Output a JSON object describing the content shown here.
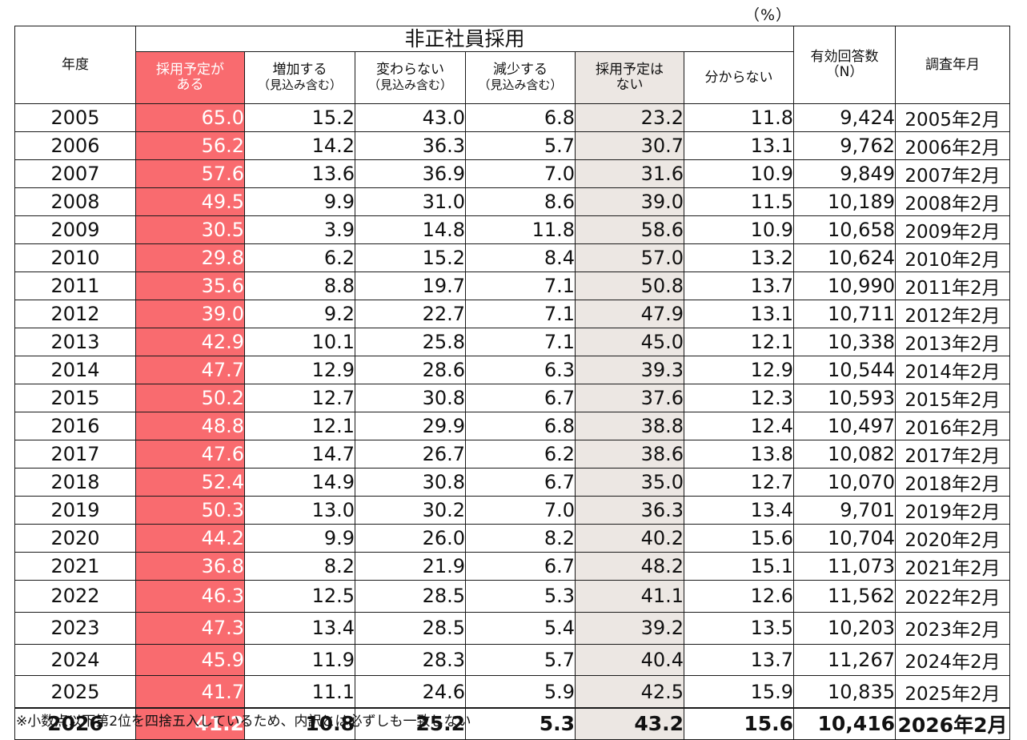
{
  "unit": "（%）",
  "header": {
    "year": "年度",
    "group": "非正社員採用",
    "plan_yes": [
      "採用予定が",
      "ある"
    ],
    "increase": [
      "増加する",
      "（見込み含む）"
    ],
    "same": [
      "変わらない",
      "（見込み含む）"
    ],
    "decrease": [
      "減少する",
      "（見込み含む）"
    ],
    "plan_no": [
      "採用予定は",
      "ない"
    ],
    "unknown": "分からない",
    "n": [
      "有効回答数",
      "（N）"
    ],
    "date": "調査年月"
  },
  "rows": [
    [
      "2005",
      "65.0",
      "15.2",
      "43.0",
      "6.8",
      "23.2",
      "11.8",
      "9,424",
      "2005年2月"
    ],
    [
      "2006",
      "56.2",
      "14.2",
      "36.3",
      "5.7",
      "30.7",
      "13.1",
      "9,762",
      "2006年2月"
    ],
    [
      "2007",
      "57.6",
      "13.6",
      "36.9",
      "7.0",
      "31.6",
      "10.9",
      "9,849",
      "2007年2月"
    ],
    [
      "2008",
      "49.5",
      "9.9",
      "31.0",
      "8.6",
      "39.0",
      "11.5",
      "10,189",
      "2008年2月"
    ],
    [
      "2009",
      "30.5",
      "3.9",
      "14.8",
      "11.8",
      "58.6",
      "10.9",
      "10,658",
      "2009年2月"
    ],
    [
      "2010",
      "29.8",
      "6.2",
      "15.2",
      "8.4",
      "57.0",
      "13.2",
      "10,624",
      "2010年2月"
    ],
    [
      "2011",
      "35.6",
      "8.8",
      "19.7",
      "7.1",
      "50.8",
      "13.7",
      "10,990",
      "2011年2月"
    ],
    [
      "2012",
      "39.0",
      "9.2",
      "22.7",
      "7.1",
      "47.9",
      "13.1",
      "10,711",
      "2012年2月"
    ],
    [
      "2013",
      "42.9",
      "10.1",
      "25.8",
      "7.1",
      "45.0",
      "12.1",
      "10,338",
      "2013年2月"
    ],
    [
      "2014",
      "47.7",
      "12.9",
      "28.6",
      "6.3",
      "39.3",
      "12.9",
      "10,544",
      "2014年2月"
    ],
    [
      "2015",
      "50.2",
      "12.7",
      "30.8",
      "6.7",
      "37.6",
      "12.3",
      "10,593",
      "2015年2月"
    ],
    [
      "2016",
      "48.8",
      "12.1",
      "29.9",
      "6.8",
      "38.8",
      "12.4",
      "10,497",
      "2016年2月"
    ],
    [
      "2017",
      "47.6",
      "14.7",
      "26.7",
      "6.2",
      "38.6",
      "13.8",
      "10,082",
      "2017年2月"
    ],
    [
      "2018",
      "52.4",
      "14.9",
      "30.8",
      "6.7",
      "35.0",
      "12.7",
      "10,070",
      "2018年2月"
    ],
    [
      "2019",
      "50.3",
      "13.0",
      "30.2",
      "7.0",
      "36.3",
      "13.4",
      "9,701",
      "2019年2月"
    ],
    [
      "2020",
      "44.2",
      "9.9",
      "26.0",
      "8.2",
      "40.2",
      "15.6",
      "10,704",
      "2020年2月"
    ],
    [
      "2021",
      "36.8",
      "8.2",
      "21.9",
      "6.7",
      "48.2",
      "15.1",
      "11,073",
      "2021年2月"
    ],
    [
      "2022",
      "46.3",
      "12.5",
      "28.5",
      "5.3",
      "41.1",
      "12.6",
      "11,562",
      "2022年2月"
    ],
    [
      "2023",
      "47.3",
      "13.4",
      "28.5",
      "5.4",
      "39.2",
      "13.5",
      "10,203",
      "2023年2月"
    ],
    [
      "2024",
      "45.9",
      "11.9",
      "28.3",
      "5.7",
      "40.4",
      "13.7",
      "11,267",
      "2024年2月"
    ],
    [
      "2025",
      "41.7",
      "11.1",
      "24.6",
      "5.9",
      "42.5",
      "15.9",
      "10,835",
      "2025年2月"
    ],
    [
      "2026",
      "41.2",
      "10.8",
      "25.2",
      "5.3",
      "43.2",
      "15.6",
      "10,416",
      "2026年2月"
    ]
  ],
  "note": "※小数点以下第2位を四捨五入しているため、内訳とは必ずしも一致しない",
  "colors": {
    "plan_yes_bg": "#f96b6f",
    "plan_no_bg": "#ece7e3",
    "border": "#1a1a1a"
  }
}
